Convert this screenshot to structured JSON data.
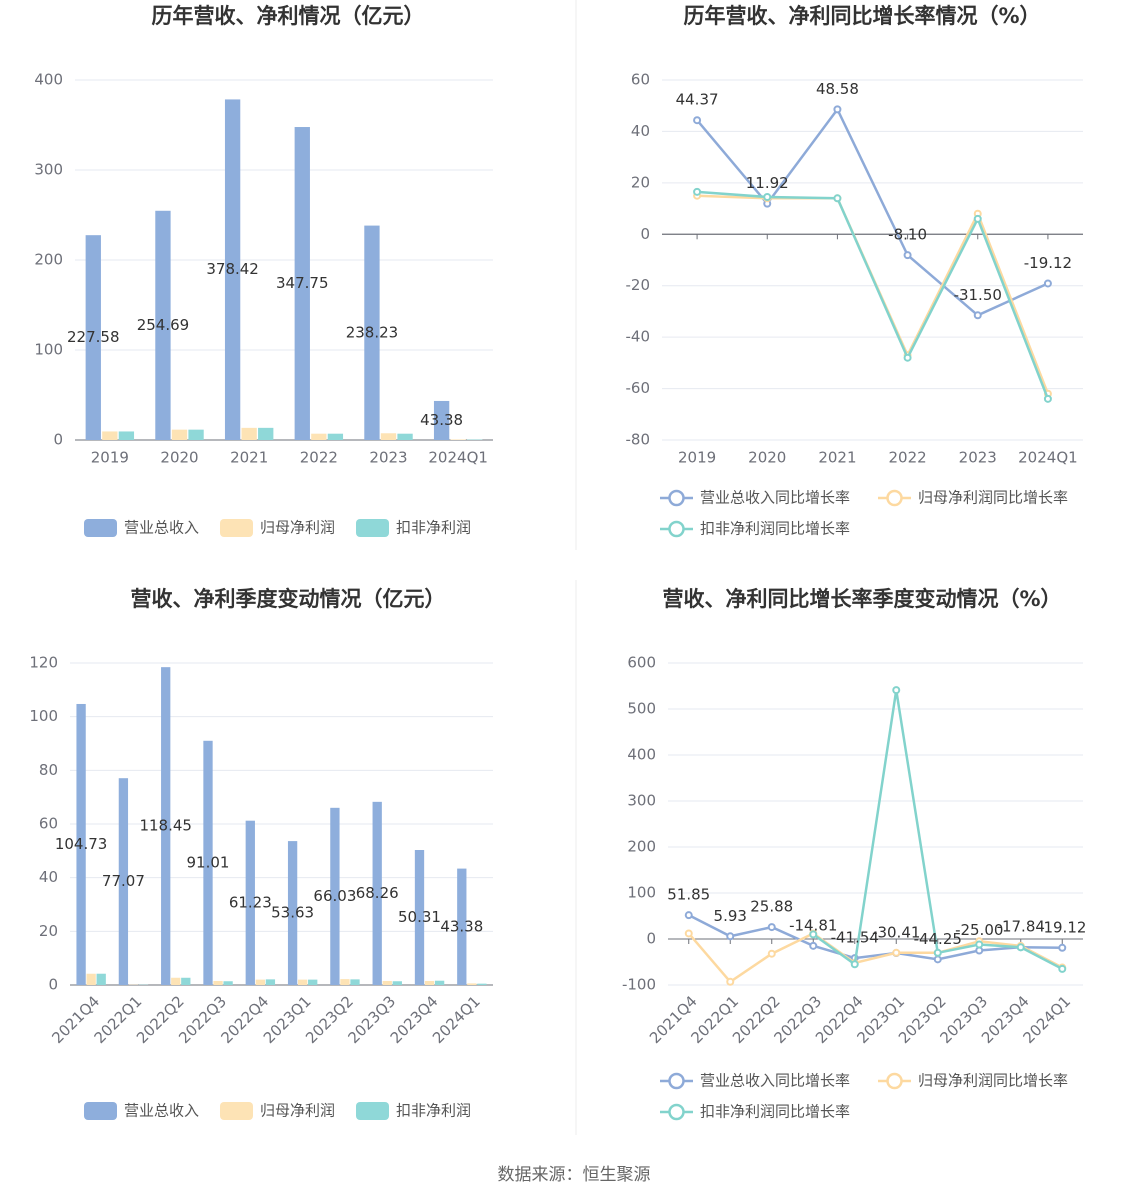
{
  "chart_data": [
    {
      "type": "bar",
      "title": "历年营收、净利情况（亿元）",
      "categories": [
        "2019",
        "2020",
        "2021",
        "2022",
        "2023",
        "2024Q1"
      ],
      "series": [
        {
          "name": "营业总收入",
          "color": "#8eaedc",
          "values": [
            227.58,
            254.69,
            378.42,
            347.75,
            238.23,
            43.38
          ],
          "value_labels": [
            "227.58",
            "254.69",
            "378.42",
            "347.75",
            "238.23",
            "43.38"
          ]
        },
        {
          "name": "归母净利润",
          "color": "#fde3b5",
          "values": [
            9.5,
            11.5,
            13.5,
            7,
            7.5,
            0.6
          ]
        },
        {
          "name": "扣非净利润",
          "color": "#8fd8d8",
          "values": [
            9.5,
            11.5,
            13.5,
            7,
            7,
            0.5
          ]
        }
      ],
      "ylim": [
        0,
        400
      ],
      "yticks": [
        0,
        100,
        200,
        300,
        400
      ],
      "grid": true
    },
    {
      "type": "line",
      "title": "历年营收、净利同比增长率情况（%）",
      "categories": [
        "2019",
        "2020",
        "2021",
        "2022",
        "2023",
        "2024Q1"
      ],
      "series": [
        {
          "name": "营业总收入同比增长率",
          "color": "#8eaad8",
          "values": [
            44.37,
            11.92,
            48.58,
            -8.1,
            -31.5,
            -19.12
          ],
          "value_labels": [
            "44.37",
            "11.92",
            "48.58",
            "-8.10",
            "-31.50",
            "-19.12"
          ]
        },
        {
          "name": "归母净利润同比增长率",
          "color": "#fdd9a0",
          "values": [
            15,
            14,
            14,
            -47,
            8,
            -62
          ]
        },
        {
          "name": "扣非净利润同比增长率",
          "color": "#82d3cc",
          "values": [
            16.5,
            14.5,
            14,
            -48,
            6,
            -64
          ]
        }
      ],
      "ylim": [
        -80,
        60
      ],
      "yticks": [
        -80,
        -60,
        -40,
        -20,
        0,
        20,
        40,
        60
      ],
      "grid": true
    },
    {
      "type": "bar",
      "title": "营收、净利季度变动情况（亿元）",
      "categories": [
        "2021Q4",
        "2022Q1",
        "2022Q2",
        "2022Q3",
        "2022Q4",
        "2023Q1",
        "2023Q2",
        "2023Q3",
        "2023Q4",
        "2024Q1"
      ],
      "series": [
        {
          "name": "营业总收入",
          "color": "#8eaedc",
          "values": [
            104.73,
            77.07,
            118.45,
            91.01,
            61.23,
            53.63,
            66.03,
            68.26,
            50.31,
            43.38
          ],
          "value_labels": [
            "104.73",
            "77.07",
            "118.45",
            "91.01",
            "61.23",
            "53.63",
            "66.03",
            "68.26",
            "50.31",
            "43.38"
          ]
        },
        {
          "name": "归母净利润",
          "color": "#fde3b5",
          "values": [
            4.2,
            0.1,
            2.7,
            1.5,
            2,
            2,
            2.2,
            1.5,
            1.5,
            0.6
          ]
        },
        {
          "name": "扣非净利润",
          "color": "#8fd8d8",
          "values": [
            4.2,
            0.1,
            2.7,
            1.4,
            2.1,
            2,
            2.1,
            1.4,
            1.6,
            0.5
          ]
        }
      ],
      "ylim": [
        0,
        120
      ],
      "yticks": [
        0,
        20,
        40,
        60,
        80,
        100,
        120
      ],
      "grid": true
    },
    {
      "type": "line",
      "title": "营收、净利同比增长率季度变动情况（%）",
      "categories": [
        "2021Q4",
        "2022Q1",
        "2022Q2",
        "2022Q3",
        "2022Q4",
        "2023Q1",
        "2023Q2",
        "2023Q3",
        "2023Q4",
        "2024Q1"
      ],
      "series": [
        {
          "name": "营业总收入同比增长率",
          "color": "#8eaad8",
          "values": [
            51.85,
            5.93,
            25.88,
            -14.81,
            -41.54,
            -30.41,
            -44.25,
            -25,
            -17.84,
            -19.12
          ],
          "value_labels": [
            "51.85",
            "5.93",
            "25.88",
            "-14.81",
            "-41.54",
            "-30.41",
            "-44.25",
            "-25.00",
            "-17.84",
            "-19.12"
          ]
        },
        {
          "name": "归母净利润同比增长率",
          "color": "#fdd9a0",
          "values": [
            12,
            -93,
            -32,
            12,
            -52,
            -30,
            -30,
            -5,
            -15,
            -62
          ]
        },
        {
          "name": "扣非净利润同比增长率",
          "color": "#82d3cc",
          "values": [
            null,
            null,
            null,
            10,
            -55,
            541,
            -30,
            -12,
            -18,
            -65
          ]
        }
      ],
      "ylim": [
        -100,
        600
      ],
      "yticks": [
        -100,
        0,
        100,
        200,
        300,
        400,
        500,
        600
      ],
      "grid": true
    }
  ],
  "source": "数据来源：恒生聚源"
}
